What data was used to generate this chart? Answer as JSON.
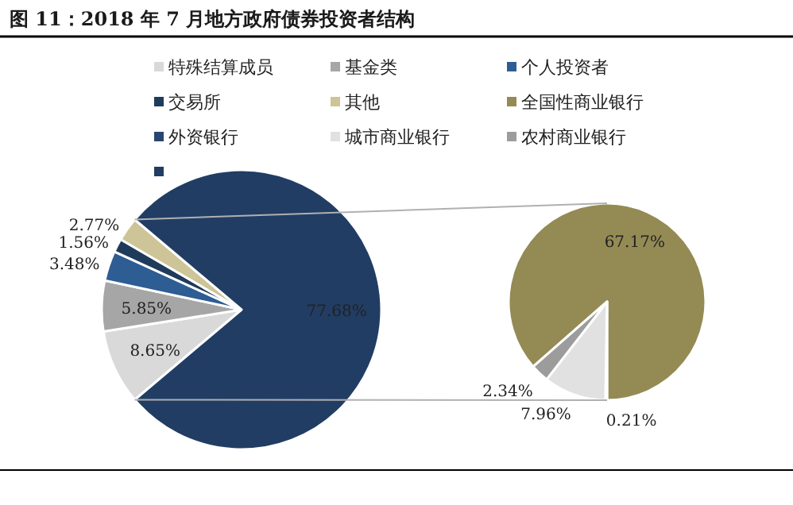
{
  "chart_data": [
    {
      "type": "pie",
      "title": "图 11：2018 年 7 月地方政府债券投资者结构",
      "categories": [
        "特殊结算成员",
        "基金类",
        "个人投资者",
        "交易所",
        "其他",
        null
      ],
      "values": [
        8.65,
        5.85,
        3.48,
        1.56,
        2.77,
        77.68
      ],
      "colors": [
        "#d9d9d9",
        "#a6a6a6",
        "#2e5d94",
        "#1f3b5c",
        "#cdc498",
        "#213d64"
      ],
      "value_labels": [
        "8.65%",
        "5.85%",
        "3.48%",
        "1.56%",
        "2.77%",
        "77.68%"
      ],
      "legend": "top"
    },
    {
      "type": "pie",
      "categories": [
        "全国性商业银行",
        "外资银行",
        "城市商业银行",
        "农村商业银行"
      ],
      "values": [
        67.17,
        0.21,
        7.96,
        2.34
      ],
      "colors": [
        "#948a54",
        "#284670",
        "#e1e1e1",
        "#9c9c9c"
      ],
      "value_labels": [
        "67.17%",
        "0.21%",
        "7.96%",
        "2.34%"
      ],
      "legend": "top"
    }
  ]
}
